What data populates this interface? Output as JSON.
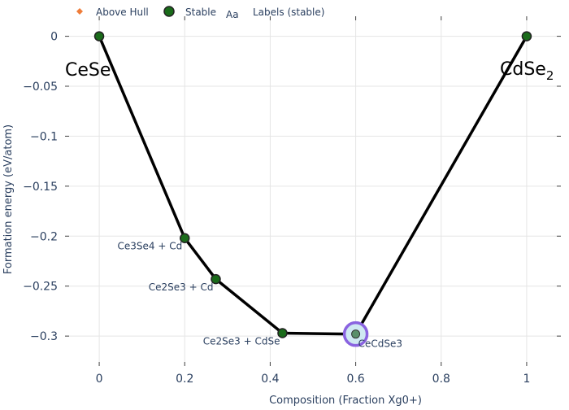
{
  "chart_data": {
    "type": "scatter",
    "xlabel": "Composition (Fraction Xg0+)",
    "ylabel": "Formation energy (eV/atom)",
    "xlim": [
      -0.08,
      1.08
    ],
    "ylim": [
      -0.33,
      0.02
    ],
    "x_ticks": [
      0,
      0.2,
      0.4,
      0.6,
      0.8,
      1
    ],
    "x_tick_labels": [
      "0",
      "0.2",
      "0.4",
      "0.6",
      "0.8",
      "1"
    ],
    "y_ticks": [
      0,
      -0.05,
      -0.1,
      -0.15,
      -0.2,
      -0.25,
      -0.3
    ],
    "y_tick_labels": [
      "0",
      "−0.05",
      "−0.1",
      "−0.15",
      "−0.2",
      "−0.25",
      "−0.3"
    ],
    "grid": true,
    "legend": {
      "position": "top-left",
      "items": [
        {
          "label": "Above Hull",
          "marker": "diamond",
          "color": "#ef7d3a"
        },
        {
          "label": "Stable",
          "marker": "circle",
          "color": "#1a6b1a"
        },
        {
          "label": "Labels (stable)",
          "marker": "text",
          "glyph": "Aa"
        }
      ]
    },
    "hull_line_color": "#000000",
    "stable_color": "#1a6b1a",
    "highlight_color": "#8a63e0",
    "series": [
      {
        "name": "Stable",
        "points": [
          {
            "x": 0,
            "y": 0,
            "label": ""
          },
          {
            "x": 0.2,
            "y": -0.202,
            "label": "Ce3Se4 + Cd"
          },
          {
            "x": 0.2727,
            "y": -0.243,
            "label": "Ce2Se3 + Cd"
          },
          {
            "x": 0.4286,
            "y": -0.297,
            "label": "Ce2Se3 + CdSe"
          },
          {
            "x": 0.6,
            "y": -0.298,
            "label": "CeCdSe3",
            "highlighted": true
          },
          {
            "x": 1,
            "y": 0,
            "label": ""
          }
        ]
      }
    ],
    "end_labels": {
      "left": {
        "base": "CeSe",
        "sub": ""
      },
      "right": {
        "base": "CdSe",
        "sub": "2"
      }
    }
  }
}
